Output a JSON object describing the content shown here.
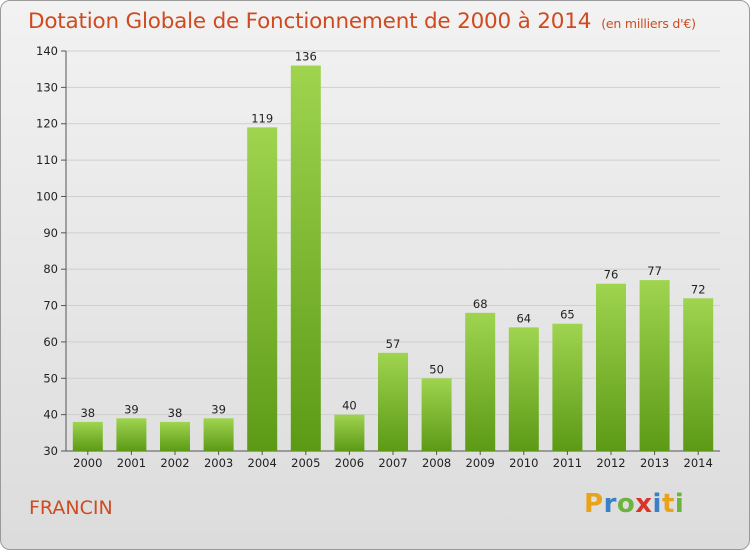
{
  "title": "Dotation Globale de Fonctionnement de 2000 à 2014",
  "unit_label": "(en milliers d'€)",
  "commune": "FRANCIN",
  "logo": {
    "text": "Proxiti",
    "colors": [
      "#e8a31b",
      "#3b7fc4",
      "#6cb33f",
      "#d9342b"
    ]
  },
  "colors": {
    "bar_top": "#9fd44f",
    "bar_bottom": "#5c9a16",
    "text": "#d04a1f",
    "grid": "#cfcfcf"
  },
  "chart_data": {
    "type": "bar",
    "title": "Dotation Globale de Fonctionnement de 2000 à 2014",
    "subtitle": "(en milliers d'€)",
    "categories": [
      "2000",
      "2001",
      "2002",
      "2003",
      "2004",
      "2005",
      "2006",
      "2007",
      "2008",
      "2009",
      "2010",
      "2011",
      "2012",
      "2013",
      "2014"
    ],
    "values": [
      38,
      39,
      38,
      39,
      119,
      136,
      40,
      57,
      50,
      68,
      64,
      65,
      76,
      77,
      72
    ],
    "ylim": [
      30,
      140
    ],
    "yticks": [
      30,
      40,
      50,
      60,
      70,
      80,
      90,
      100,
      110,
      120,
      130,
      140
    ],
    "grid": true,
    "data_labels": true
  }
}
